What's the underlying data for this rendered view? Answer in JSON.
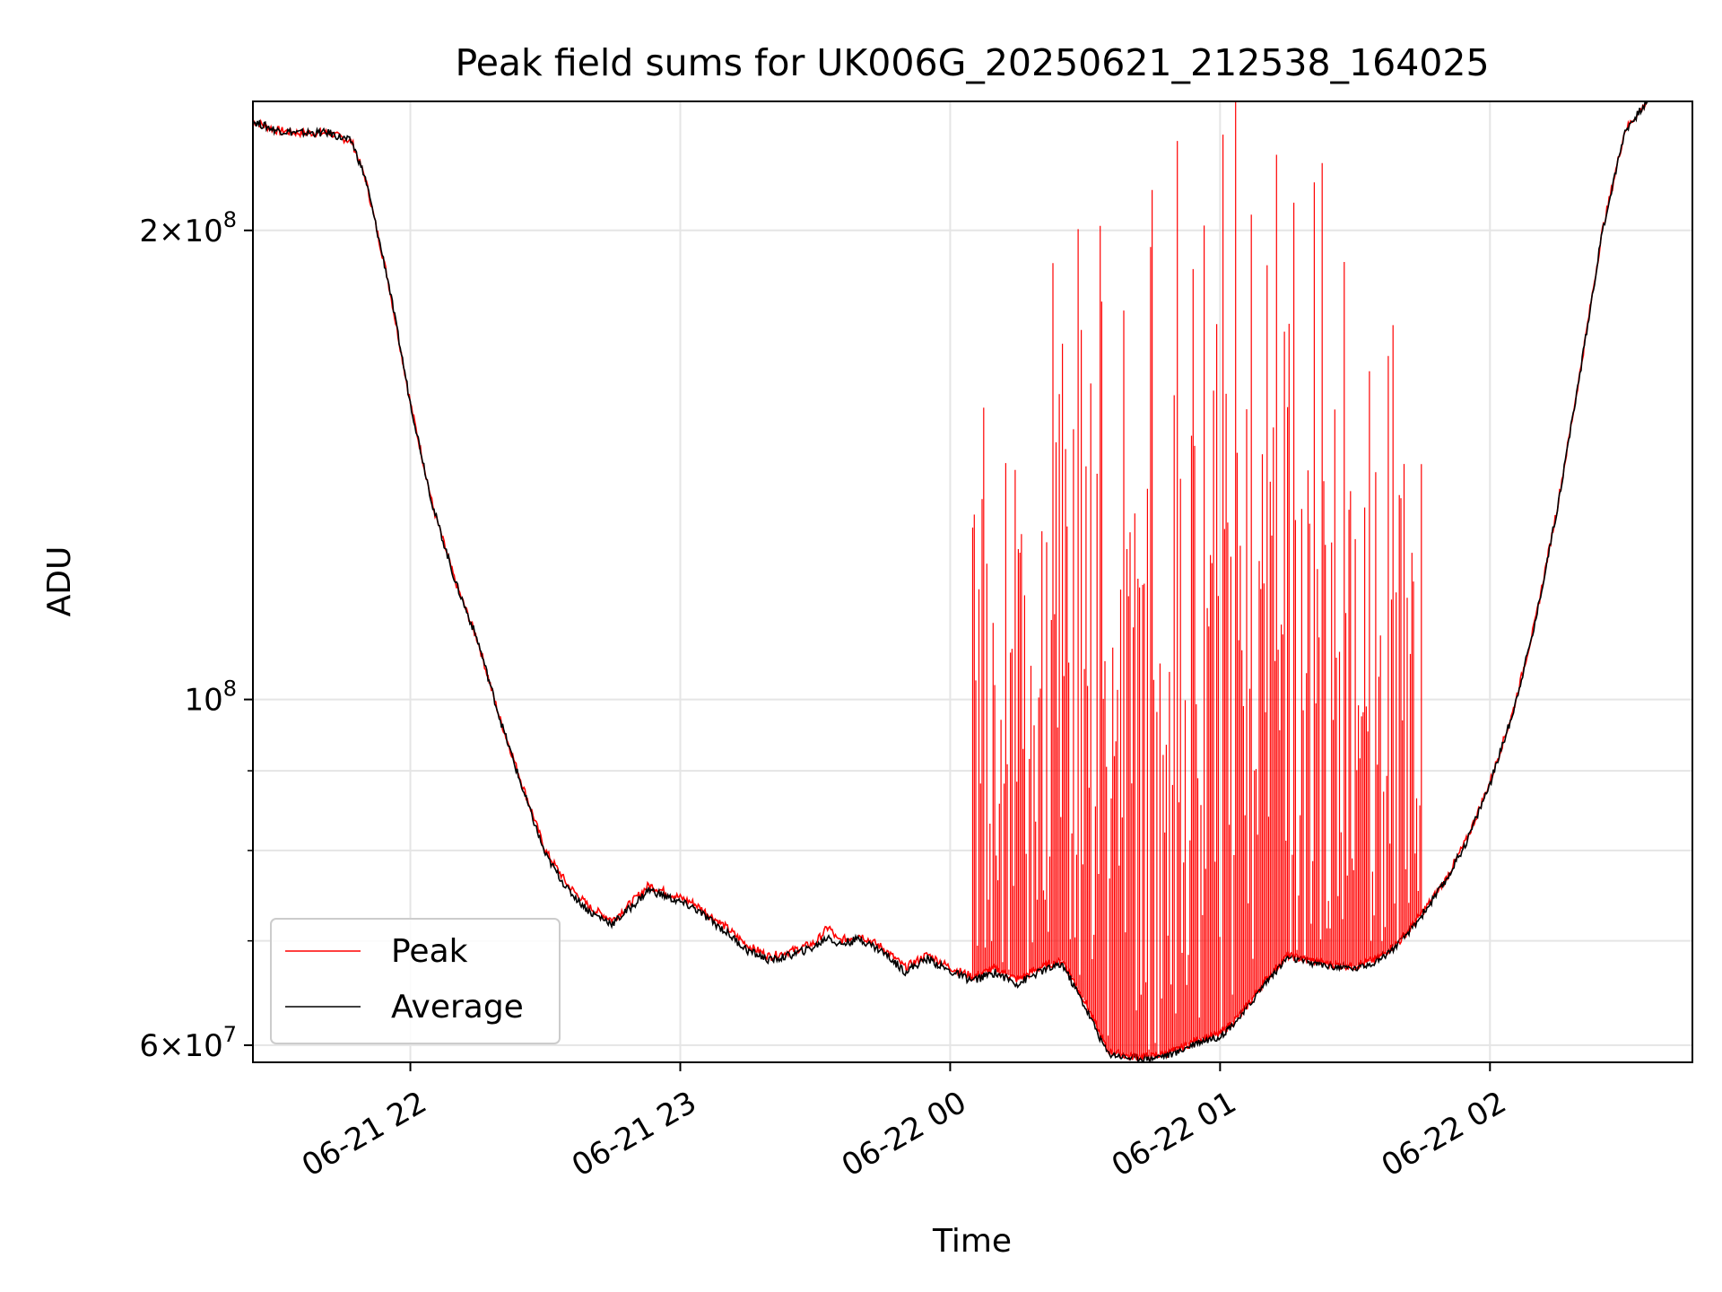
{
  "chart_data": {
    "type": "line",
    "title": "Peak field sums for UK006G_20250621_212538_164025",
    "xlabel": "Time",
    "ylabel": "ADU",
    "yscale": "log",
    "ylim": [
      58500000,
      242000000
    ],
    "xlim": [
      "2025-06-21 21:25",
      "2025-06-22 02:45"
    ],
    "grid": true,
    "legend_position": "lower-left",
    "x_ticks": [
      {
        "t": "2025-06-21 22:00",
        "label": "06-21 22"
      },
      {
        "t": "2025-06-21 23:00",
        "label": "06-21 23"
      },
      {
        "t": "2025-06-22 00:00",
        "label": "06-22 00"
      },
      {
        "t": "2025-06-22 01:00",
        "label": "06-22 01"
      },
      {
        "t": "2025-06-22 02:00",
        "label": "06-22 02"
      }
    ],
    "y_ticks": [
      {
        "value": 60000000,
        "mantissa": "6",
        "exponent": "7"
      },
      {
        "value": 100000000,
        "mantissa": "",
        "exponent": "8"
      },
      {
        "value": 200000000,
        "mantissa": "2",
        "exponent": "8"
      }
    ],
    "y_minor_ticks": [
      70000000,
      80000000,
      90000000
    ],
    "series": [
      {
        "name": "Peak",
        "color": "#ff0000",
        "points": [
          [
            "2025-06-21 21:25",
            235000000
          ],
          [
            "2025-06-21 21:30",
            232000000
          ],
          [
            "2025-06-21 21:35",
            231000000
          ],
          [
            "2025-06-21 21:42",
            231000000
          ],
          [
            "2025-06-21 21:47",
            228000000
          ],
          [
            "2025-06-21 21:50",
            216000000
          ],
          [
            "2025-06-21 21:55",
            186000000
          ],
          [
            "2025-06-21 22:00",
            155000000
          ],
          [
            "2025-06-21 22:05",
            133000000
          ],
          [
            "2025-06-21 22:10",
            119000000
          ],
          [
            "2025-06-21 22:15",
            109000000
          ],
          [
            "2025-06-21 22:20",
            97000000
          ],
          [
            "2025-06-21 22:25",
            88000000
          ],
          [
            "2025-06-21 22:30",
            80000000
          ],
          [
            "2025-06-21 22:35",
            76000000
          ],
          [
            "2025-06-21 22:40",
            73500000
          ],
          [
            "2025-06-21 22:45",
            72200000
          ],
          [
            "2025-06-21 22:50",
            74500000
          ],
          [
            "2025-06-21 22:53",
            76000000
          ],
          [
            "2025-06-21 22:58",
            75000000
          ],
          [
            "2025-06-21 23:03",
            74000000
          ],
          [
            "2025-06-21 23:10",
            71500000
          ],
          [
            "2025-06-21 23:15",
            69500000
          ],
          [
            "2025-06-21 23:20",
            68400000
          ],
          [
            "2025-06-21 23:25",
            69000000
          ],
          [
            "2025-06-21 23:30",
            69800000
          ],
          [
            "2025-06-21 23:33",
            71500000
          ],
          [
            "2025-06-21 23:35",
            70000000
          ],
          [
            "2025-06-21 23:40",
            70600000
          ],
          [
            "2025-06-21 23:45",
            69300000
          ],
          [
            "2025-06-21 23:50",
            67300000
          ],
          [
            "2025-06-21 23:55",
            68600000
          ],
          [
            "2025-06-22 00:00",
            67300000
          ],
          [
            "2025-06-22 00:05",
            66400000
          ],
          [
            "2025-06-22 00:10",
            67200000
          ],
          [
            "2025-06-22 00:15",
            66100000
          ],
          [
            "2025-06-22 00:20",
            67300000
          ],
          [
            "2025-06-22 00:25",
            68000000
          ],
          [
            "2025-06-22 00:30",
            64000000
          ],
          [
            "2025-06-22 00:35",
            59500000
          ],
          [
            "2025-06-22 00:40",
            59000000
          ],
          [
            "2025-06-22 00:45",
            59000000
          ],
          [
            "2025-06-22 00:50",
            59500000
          ],
          [
            "2025-06-22 00:55",
            60500000
          ],
          [
            "2025-06-22 01:00",
            61000000
          ],
          [
            "2025-06-22 01:05",
            63000000
          ],
          [
            "2025-06-22 01:10",
            66000000
          ],
          [
            "2025-06-22 01:15",
            68500000
          ],
          [
            "2025-06-22 01:20",
            68000000
          ],
          [
            "2025-06-22 01:25",
            67600000
          ],
          [
            "2025-06-22 01:30",
            67400000
          ],
          [
            "2025-06-22 01:35",
            68200000
          ],
          [
            "2025-06-22 01:40",
            70000000
          ],
          [
            "2025-06-22 01:45",
            73000000
          ],
          [
            "2025-06-22 01:50",
            76500000
          ],
          [
            "2025-06-22 01:55",
            81500000
          ],
          [
            "2025-06-22 02:00",
            88500000
          ],
          [
            "2025-06-22 02:05",
            98000000
          ],
          [
            "2025-06-22 02:10",
            112000000
          ],
          [
            "2025-06-22 02:15",
            133000000
          ],
          [
            "2025-06-22 02:20",
            162000000
          ],
          [
            "2025-06-22 02:25",
            200000000
          ],
          [
            "2025-06-22 02:30",
            232000000
          ],
          [
            "2025-06-22 02:35",
            242000000
          ]
        ]
      },
      {
        "name": "Average",
        "color": "#000000",
        "points": [
          [
            "2025-06-21 21:25",
            235000000
          ],
          [
            "2025-06-21 21:30",
            232000000
          ],
          [
            "2025-06-21 21:35",
            231000000
          ],
          [
            "2025-06-21 21:42",
            231000000
          ],
          [
            "2025-06-21 21:47",
            228000000
          ],
          [
            "2025-06-21 21:50",
            216000000
          ],
          [
            "2025-06-21 21:55",
            186000000
          ],
          [
            "2025-06-21 22:00",
            155000000
          ],
          [
            "2025-06-21 22:05",
            133000000
          ],
          [
            "2025-06-21 22:10",
            119000000
          ],
          [
            "2025-06-21 22:15",
            109000000
          ],
          [
            "2025-06-21 22:20",
            97000000
          ],
          [
            "2025-06-21 22:25",
            87500000
          ],
          [
            "2025-06-21 22:30",
            79500000
          ],
          [
            "2025-06-21 22:35",
            75500000
          ],
          [
            "2025-06-21 22:40",
            73000000
          ],
          [
            "2025-06-21 22:45",
            71800000
          ],
          [
            "2025-06-21 22:50",
            74000000
          ],
          [
            "2025-06-21 22:53",
            75500000
          ],
          [
            "2025-06-21 22:58",
            74500000
          ],
          [
            "2025-06-21 23:03",
            73500000
          ],
          [
            "2025-06-21 23:10",
            71000000
          ],
          [
            "2025-06-21 23:15",
            69000000
          ],
          [
            "2025-06-21 23:20",
            68000000
          ],
          [
            "2025-06-21 23:25",
            68600000
          ],
          [
            "2025-06-21 23:30",
            69400000
          ],
          [
            "2025-06-21 23:33",
            70500000
          ],
          [
            "2025-06-21 23:35",
            69600000
          ],
          [
            "2025-06-21 23:40",
            70200000
          ],
          [
            "2025-06-21 23:45",
            68900000
          ],
          [
            "2025-06-21 23:50",
            66900000
          ],
          [
            "2025-06-21 23:55",
            68200000
          ],
          [
            "2025-06-22 00:00",
            66900000
          ],
          [
            "2025-06-22 00:05",
            66000000
          ],
          [
            "2025-06-22 00:10",
            66800000
          ],
          [
            "2025-06-22 00:15",
            65700000
          ],
          [
            "2025-06-22 00:20",
            66900000
          ],
          [
            "2025-06-22 00:25",
            67600000
          ],
          [
            "2025-06-22 00:30",
            63500000
          ],
          [
            "2025-06-22 00:35",
            59300000
          ],
          [
            "2025-06-22 00:40",
            58900000
          ],
          [
            "2025-06-22 00:45",
            58900000
          ],
          [
            "2025-06-22 00:50",
            59300000
          ],
          [
            "2025-06-22 00:55",
            60300000
          ],
          [
            "2025-06-22 01:00",
            60800000
          ],
          [
            "2025-06-22 01:05",
            62800000
          ],
          [
            "2025-06-22 01:10",
            65800000
          ],
          [
            "2025-06-22 01:15",
            68300000
          ],
          [
            "2025-06-22 01:20",
            67800000
          ],
          [
            "2025-06-22 01:25",
            67400000
          ],
          [
            "2025-06-22 01:30",
            67200000
          ],
          [
            "2025-06-22 01:35",
            68000000
          ],
          [
            "2025-06-22 01:40",
            69800000
          ],
          [
            "2025-06-22 01:45",
            72800000
          ],
          [
            "2025-06-22 01:50",
            76300000
          ],
          [
            "2025-06-22 01:55",
            81300000
          ],
          [
            "2025-06-22 02:00",
            88300000
          ],
          [
            "2025-06-22 02:05",
            97800000
          ],
          [
            "2025-06-22 02:10",
            111800000
          ],
          [
            "2025-06-22 02:15",
            132800000
          ],
          [
            "2025-06-22 02:20",
            161800000
          ],
          [
            "2025-06-22 02:25",
            199800000
          ],
          [
            "2025-06-22 02:30",
            231800000
          ],
          [
            "2025-06-22 02:35",
            242000000
          ]
        ]
      }
    ]
  }
}
